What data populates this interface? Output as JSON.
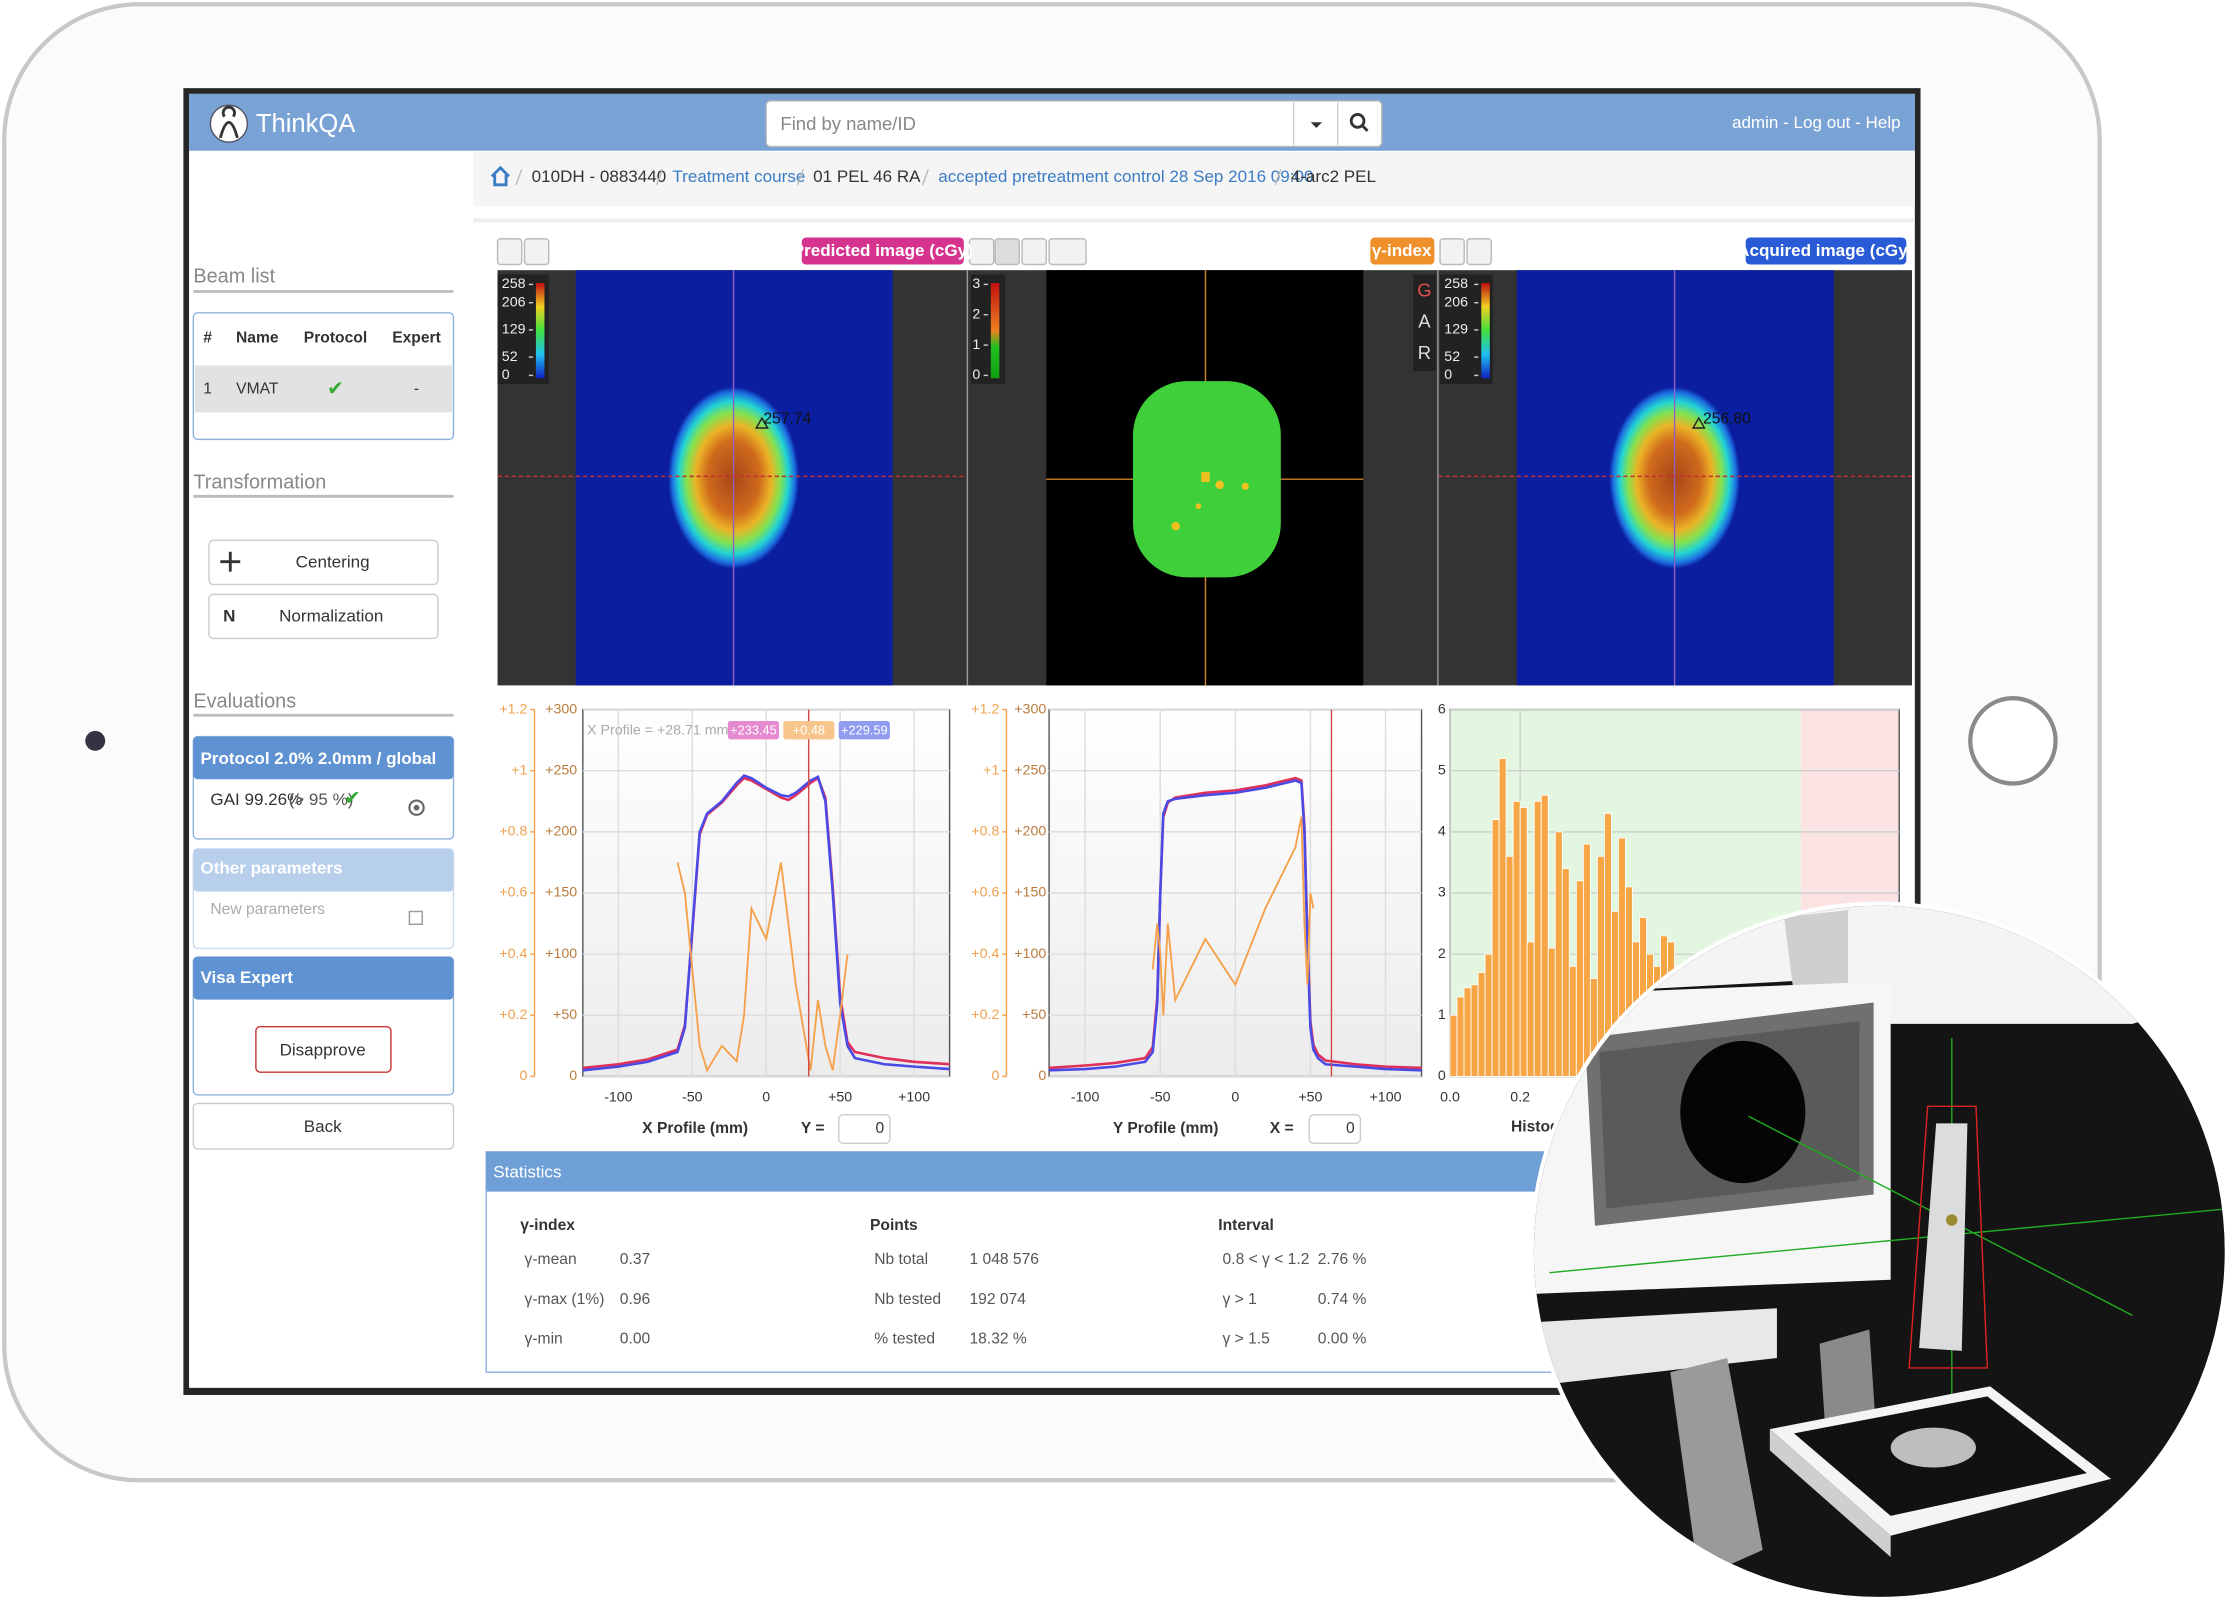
{
  "header": {
    "logo": "ThinkQA",
    "search_placeholder": "Find by name/ID",
    "user_menu": "admin - Log out - Help"
  },
  "breadcrumb": [
    "010DH - 0883440",
    "Treatment course",
    "01 PEL 46 RA",
    "accepted pretreatment control 28 Sep 2016 09:00",
    "4-arc2 PEL"
  ],
  "sidebar": {
    "beam_list": {
      "title": "Beam list",
      "columns": [
        "#",
        "Name",
        "Protocol",
        "Expert"
      ],
      "rows": [
        [
          "1",
          "VMAT",
          "✔",
          "-"
        ]
      ]
    },
    "transformation": {
      "title": "Transformation",
      "centering": "Centering",
      "normalization_icon": "N",
      "normalization": "Normalization"
    },
    "evaluations": {
      "title": "Evaluations",
      "protocol": "Protocol 2.0% 2.0mm / global",
      "gai": "GAI 99.26%",
      "gai_limit": "(> 95 %)",
      "gai_check": "✔",
      "other_title": "Other parameters",
      "other_placeholder": "New parameters",
      "visa_title": "Visa Expert",
      "disapprove": "Disapprove"
    },
    "back": "Back"
  },
  "image_panels": {
    "predicted": {
      "label": "Predicted image (cGy)",
      "colorbar_ticks": [
        258,
        206,
        129,
        52,
        0
      ],
      "max_annotation": "257.74"
    },
    "gamma": {
      "label": "γ-index",
      "colorbar_ticks": [
        3,
        2,
        1,
        0
      ],
      "side_letters": [
        "G",
        "A",
        "R"
      ]
    },
    "acquired": {
      "label": "Acquired image (cGy)",
      "colorbar_ticks": [
        258,
        206,
        129,
        52,
        0
      ],
      "max_annotation": "256.80"
    }
  },
  "chart_data": [
    {
      "type": "line",
      "x_label": "X Profile (mm)",
      "position_label": "Y =",
      "position_value": "0",
      "legend": "X Profile = +28.71 mm",
      "readouts": [
        "+233.45",
        "+0.48",
        "+229.59"
      ],
      "readout_colors": [
        "#e58ad0",
        "#f8c58c",
        "#8f9cf0"
      ],
      "cursor_x": 28.71,
      "cursor_color": "#d04848",
      "xlim": [
        -124,
        124
      ],
      "ylim": [
        0,
        300
      ],
      "y2lim": [
        0,
        1.2
      ],
      "xticks": [
        -100,
        -50,
        0,
        {
          "value": 50,
          "label": "+50"
        },
        {
          "value": 100,
          "label": "+100"
        }
      ],
      "yticks": [
        0,
        {
          "value": 50,
          "label": "+50"
        },
        {
          "value": 100,
          "label": "+100"
        },
        {
          "value": 150,
          "label": "+150"
        },
        {
          "value": 200,
          "label": "+200"
        },
        {
          "value": 250,
          "label": "+250"
        },
        {
          "value": 300,
          "label": "+300"
        }
      ],
      "y2ticks": [
        0,
        {
          "value": 0.2,
          "label": "+0.2"
        },
        {
          "value": 0.4,
          "label": "+0.4"
        },
        {
          "value": 0.6,
          "label": "+0.6"
        },
        {
          "value": 0.8,
          "label": "+0.8"
        },
        {
          "value": 1,
          "label": "+1"
        },
        {
          "value": 1.2,
          "label": "+1.2"
        }
      ],
      "grid": true,
      "x": [
        -124,
        -100,
        -80,
        -60,
        -55,
        -50,
        -45,
        -40,
        -30,
        -20,
        -15,
        -10,
        0,
        10,
        15,
        20,
        30,
        35,
        40,
        45,
        50,
        55,
        60,
        80,
        100,
        124
      ],
      "series": [
        {
          "color": "#e0305a",
          "values": [
            7,
            10,
            14,
            22,
            42,
            118,
            198,
            214,
            224,
            238,
            244,
            242,
            235,
            228,
            226,
            230,
            240,
            244,
            228,
            155,
            65,
            28,
            20,
            15,
            12,
            10
          ]
        },
        {
          "color": "#4a4ae6",
          "values": [
            5,
            8,
            12,
            20,
            40,
            120,
            200,
            215,
            225,
            240,
            246,
            244,
            236,
            230,
            229,
            232,
            242,
            245,
            225,
            150,
            60,
            25,
            15,
            10,
            8,
            6
          ]
        },
        {
          "color": "#f5a04a",
          "axis": "y2",
          "values": [
            null,
            null,
            null,
            0.7,
            0.6,
            0.35,
            0.1,
            0.02,
            0.1,
            0.05,
            0.2,
            0.55,
            0.45,
            0.7,
            0.5,
            0.3,
            0.02,
            0.25,
            0.1,
            0.02,
            0.2,
            0.4,
            null,
            null,
            null,
            null
          ]
        }
      ]
    },
    {
      "type": "line",
      "x_label": "Y Profile (mm)",
      "position_label": "X =",
      "position_value": "0",
      "cursor_x": 64,
      "cursor_color": "#d04848",
      "xlim": [
        -124,
        124
      ],
      "ylim": [
        0,
        300
      ],
      "y2lim": [
        0,
        1.2
      ],
      "xticks": [
        -100,
        -50,
        0,
        {
          "value": 50,
          "label": "+50"
        },
        {
          "value": 100,
          "label": "+100"
        }
      ],
      "yticks": [
        0,
        {
          "value": 50,
          "label": "+50"
        },
        {
          "value": 100,
          "label": "+100"
        },
        {
          "value": 150,
          "label": "+150"
        },
        {
          "value": 200,
          "label": "+200"
        },
        {
          "value": 250,
          "label": "+250"
        },
        {
          "value": 300,
          "label": "+300"
        }
      ],
      "y2ticks": [
        0,
        {
          "value": 0.2,
          "label": "+0.2"
        },
        {
          "value": 0.4,
          "label": "+0.4"
        },
        {
          "value": 0.6,
          "label": "+0.6"
        },
        {
          "value": 0.8,
          "label": "+0.8"
        },
        {
          "value": 1,
          "label": "+1"
        },
        {
          "value": 1.2,
          "label": "+1.2"
        }
      ],
      "grid": true,
      "x": [
        -124,
        -100,
        -80,
        -60,
        -55,
        -52,
        -50,
        -48,
        -45,
        -40,
        -20,
        0,
        20,
        40,
        44,
        46,
        48,
        50,
        52,
        55,
        60,
        80,
        100,
        124
      ],
      "series": [
        {
          "color": "#e0305a",
          "values": [
            7,
            9,
            11,
            15,
            24,
            65,
            150,
            212,
            224,
            228,
            232,
            234,
            238,
            244,
            242,
            205,
            115,
            45,
            26,
            18,
            13,
            10,
            8,
            7
          ]
        },
        {
          "color": "#4a4ae6",
          "values": [
            5,
            6,
            8,
            12,
            20,
            60,
            150,
            215,
            225,
            227,
            230,
            232,
            236,
            242,
            240,
            200,
            110,
            40,
            22,
            15,
            10,
            8,
            6,
            5
          ]
        },
        {
          "color": "#f5a04a",
          "axis": "y2",
          "values": [
            null,
            null,
            null,
            null,
            0.35,
            0.5,
            0.4,
            0.2,
            0.5,
            0.25,
            0.45,
            0.3,
            0.55,
            0.75,
            0.85,
            0.5,
            0.3,
            0.6,
            0.55,
            null,
            null,
            null,
            null,
            null
          ]
        }
      ]
    },
    {
      "type": "histogram",
      "x_label": "Histog",
      "color": "#f7a545",
      "bins": [
        0,
        0.02,
        0.04,
        0.06,
        0.08,
        0.1,
        0.12,
        0.14,
        0.16,
        0.18,
        0.2,
        0.22,
        0.24,
        0.26,
        0.28,
        0.3,
        0.32,
        0.34,
        0.36,
        0.38,
        0.4,
        0.42,
        0.44,
        0.46,
        0.48,
        0.5,
        0.52,
        0.54,
        0.56,
        0.58,
        0.6,
        0.62,
        0.64
      ],
      "values": [
        1.0,
        1.3,
        1.45,
        1.5,
        1.7,
        2.0,
        4.2,
        5.2,
        3.6,
        4.5,
        4.4,
        2.2,
        4.5,
        4.6,
        2.1,
        4.0,
        3.4,
        1.8,
        3.2,
        3.8,
        1.6,
        3.6,
        4.3,
        2.7,
        3.9,
        3.1,
        2.2,
        2.6,
        2.0,
        1.8,
        2.3,
        2.2
      ],
      "xlim": [
        0,
        1.28
      ],
      "ylim": [
        0,
        6
      ],
      "yticks": [
        0,
        1,
        2,
        3,
        4,
        5,
        6
      ],
      "xticks": [
        {
          "value": 0,
          "label": "0.0"
        },
        0.2
      ],
      "threshold": 1,
      "pass_color": "#e3f6df",
      "fail_color": "#fbe3e3",
      "grid": true
    }
  ],
  "statistics": {
    "title": "Statistics",
    "groups": [
      {
        "title": "γ-index",
        "rows": [
          [
            "γ-mean",
            "0.37"
          ],
          [
            "γ-max (1%)",
            "0.96"
          ],
          [
            "γ-min",
            "0.00"
          ]
        ]
      },
      {
        "title": "Points",
        "rows": [
          [
            "Nb total",
            "1 048 576"
          ],
          [
            "Nb tested",
            "192 074"
          ],
          [
            "% tested",
            "18.32 %"
          ]
        ]
      },
      {
        "title": "Interval",
        "rows": [
          [
            "0.8 < γ < 1.2",
            "2.76 %"
          ],
          [
            "γ > 1",
            "0.74 %"
          ],
          [
            "γ > 1.5",
            "0.00 %"
          ]
        ]
      }
    ]
  }
}
